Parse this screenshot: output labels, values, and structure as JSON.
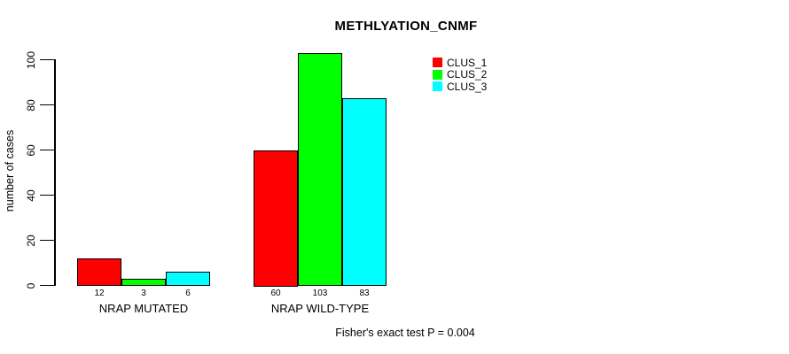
{
  "page": {
    "background": "#ffffff"
  },
  "chart_data": {
    "type": "bar",
    "title": "METHLYATION_CNMF",
    "ylabel": "number of cases",
    "xlabel": "",
    "categories": [
      "NRAP MUTATED",
      "NRAP WILD-TYPE"
    ],
    "series": [
      {
        "name": "CLUS_1",
        "color": "#ff0000",
        "values": [
          12,
          60
        ]
      },
      {
        "name": "CLUS_2",
        "color": "#00ff00",
        "values": [
          3,
          103
        ]
      },
      {
        "name": "CLUS_3",
        "color": "#00ffff",
        "values": [
          6,
          83
        ]
      }
    ],
    "bar_value_labels": true,
    "yticks": [
      0,
      20,
      40,
      60,
      80,
      100
    ],
    "ylim": [
      0,
      100
    ],
    "grid": false,
    "legend": {
      "position": "top-right",
      "entries": [
        "CLUS_1",
        "CLUS_2",
        "CLUS_3"
      ],
      "colors": [
        "#ff0000",
        "#00ff00",
        "#00ffff"
      ]
    },
    "annotation": "Fisher's exact test P = 0.004",
    "axis_color": "#000000",
    "bar_border_color": "#000000"
  }
}
